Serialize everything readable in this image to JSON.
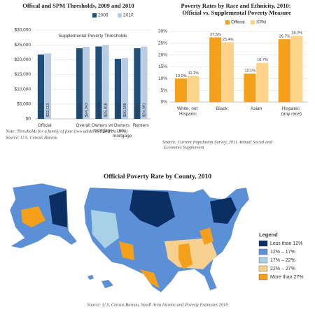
{
  "chart_data": [
    {
      "type": "bar",
      "title": "Offical and SPM Thresholds, 2009 and 2010",
      "categories": [
        "Official",
        null,
        "Overall",
        "Owners w/ mortgage",
        "Owners w/o mortgage",
        "Renters"
      ],
      "series": [
        {
          "name": "2009",
          "color": "#1f4e79",
          "values": [
            21756,
            null,
            23854,
            24450,
            20298,
            23874
          ],
          "value_labels": [
            "$21,756",
            null,
            "$23,854",
            "$24,450",
            "$20,298",
            "$23,874"
          ]
        },
        {
          "name": "2010",
          "color": "#b8cce4",
          "values": [
            22113,
            null,
            24343,
            25018,
            20590,
            24391
          ],
          "value_labels": [
            "$22,113",
            null,
            "$24,343",
            "$25,018",
            "$20,590",
            "$24,391"
          ]
        }
      ],
      "ylim": [
        0,
        30000
      ],
      "yticks": [
        {
          "value": 0,
          "label": "$0"
        },
        {
          "value": 5000,
          "label": "$5,000"
        },
        {
          "value": 10000,
          "label": "$10,000"
        },
        {
          "value": 15000,
          "label": "$15,000"
        },
        {
          "value": 20000,
          "label": "$20,000"
        },
        {
          "value": 25000,
          "label": "$25,000"
        },
        {
          "value": 30000,
          "label": "$30,000"
        }
      ],
      "annotation": "Supplemental Poverty Thresholds",
      "note": "Note: Thresholds for a family of four (two adults and two children)",
      "source": "Source: U.S. Census Bureau"
    },
    {
      "type": "bar",
      "title": "Poverty Rates by Race and Ethnicity, 2010: Official vs. Supplemental Poverty Measure",
      "categories": [
        "White, not Hispanic",
        "Black",
        "Asian",
        "Hispanic (any race)"
      ],
      "series": [
        {
          "name": "Official",
          "color": "#f5a01a",
          "values": [
            10.0,
            27.5,
            12.1,
            26.7
          ],
          "value_labels": [
            "10.0%",
            "27.5%",
            "12.1%",
            "26.7%"
          ]
        },
        {
          "name": "SPM",
          "color": "#fdd38a",
          "values": [
            11.1,
            25.4,
            16.7,
            28.2
          ],
          "value_labels": [
            "11.1%",
            "25.4%",
            "16.7%",
            "28.2%"
          ]
        }
      ],
      "ylim": [
        0,
        30
      ],
      "yticks": [
        {
          "value": 0,
          "label": "0%"
        },
        {
          "value": 5,
          "label": "5%"
        },
        {
          "value": 10,
          "label": "10%"
        },
        {
          "value": 15,
          "label": "15%"
        },
        {
          "value": 20,
          "label": "20%"
        },
        {
          "value": 25,
          "label": "25%"
        },
        {
          "value": 30,
          "label": "30%"
        }
      ],
      "source": "Source: Current Population Survey, 2011 Annual Social and Economic Supplement"
    }
  ],
  "map": {
    "title": "Official Poverty Rate by County, 2010",
    "legend": {
      "title": "Legend",
      "items": [
        {
          "label": "Less than 12%",
          "color": "#0b2f63"
        },
        {
          "label": "12% – 17%",
          "color": "#5b8fd6"
        },
        {
          "label": "17% – 22%",
          "color": "#a8d1e6"
        },
        {
          "label": "22% – 27%",
          "color": "#f6d08f"
        },
        {
          "label": "More than 27%",
          "color": "#f5a01a"
        }
      ]
    },
    "source": "Source: U.S. Census Bureau, Small Area Income and Poverty Estimates 2010"
  }
}
